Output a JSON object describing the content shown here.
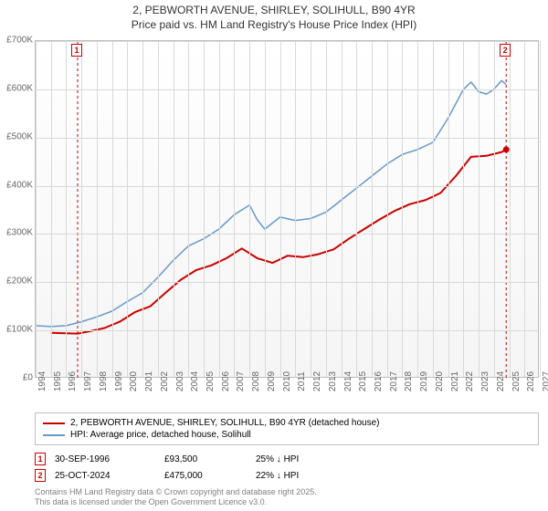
{
  "title": {
    "line1": "2, PEBWORTH AVENUE, SHIRLEY, SOLIHULL, B90 4YR",
    "line2": "Price paid vs. HM Land Registry's House Price Index (HPI)"
  },
  "chart": {
    "type": "line",
    "background_top": "#ffffff",
    "background_bottom": "#f5f5f5",
    "grid_color": "#d9d9d9",
    "border_color": "#bfbfbf",
    "ylim": [
      0,
      700000
    ],
    "ytick_step": 100000,
    "yticks": [
      "£0",
      "£100K",
      "£200K",
      "£300K",
      "£400K",
      "£500K",
      "£600K",
      "£700K"
    ],
    "xlim": [
      1994,
      2027
    ],
    "xticks": [
      "1994",
      "1995",
      "1996",
      "1997",
      "1998",
      "1999",
      "2000",
      "2001",
      "2002",
      "2003",
      "2004",
      "2005",
      "2006",
      "2007",
      "2008",
      "2009",
      "2010",
      "2011",
      "2012",
      "2013",
      "2014",
      "2015",
      "2016",
      "2017",
      "2018",
      "2019",
      "2020",
      "2021",
      "2022",
      "2023",
      "2024",
      "2025",
      "2026",
      "2027"
    ],
    "series": [
      {
        "name": "price_paid",
        "color": "#cc0000",
        "width": 2,
        "points": [
          [
            1995.0,
            95000
          ],
          [
            1996.75,
            93500
          ],
          [
            1997.5,
            98000
          ],
          [
            1998.5,
            105000
          ],
          [
            1999.5,
            118000
          ],
          [
            2000.5,
            138000
          ],
          [
            2001.5,
            150000
          ],
          [
            2002.5,
            178000
          ],
          [
            2003.5,
            205000
          ],
          [
            2004.5,
            225000
          ],
          [
            2005.5,
            235000
          ],
          [
            2006.5,
            250000
          ],
          [
            2007.5,
            270000
          ],
          [
            2008.5,
            250000
          ],
          [
            2009.5,
            240000
          ],
          [
            2010.5,
            255000
          ],
          [
            2011.5,
            252000
          ],
          [
            2012.5,
            258000
          ],
          [
            2013.5,
            268000
          ],
          [
            2014.5,
            290000
          ],
          [
            2015.5,
            310000
          ],
          [
            2016.5,
            330000
          ],
          [
            2017.5,
            348000
          ],
          [
            2018.5,
            362000
          ],
          [
            2019.5,
            370000
          ],
          [
            2020.5,
            385000
          ],
          [
            2021.5,
            420000
          ],
          [
            2022.5,
            460000
          ],
          [
            2023.5,
            462000
          ],
          [
            2024.5,
            470000
          ],
          [
            2024.8,
            475000
          ]
        ],
        "end_marker": true
      },
      {
        "name": "hpi",
        "color": "#6699cc",
        "width": 1.5,
        "points": [
          [
            1994.0,
            110000
          ],
          [
            1995.0,
            108000
          ],
          [
            1996.0,
            110000
          ],
          [
            1997.0,
            118000
          ],
          [
            1998.0,
            128000
          ],
          [
            1999.0,
            140000
          ],
          [
            2000.0,
            160000
          ],
          [
            2001.0,
            178000
          ],
          [
            2002.0,
            210000
          ],
          [
            2003.0,
            245000
          ],
          [
            2004.0,
            275000
          ],
          [
            2005.0,
            290000
          ],
          [
            2006.0,
            310000
          ],
          [
            2007.0,
            340000
          ],
          [
            2008.0,
            360000
          ],
          [
            2008.5,
            330000
          ],
          [
            2009.0,
            310000
          ],
          [
            2010.0,
            335000
          ],
          [
            2011.0,
            328000
          ],
          [
            2012.0,
            332000
          ],
          [
            2013.0,
            345000
          ],
          [
            2014.0,
            370000
          ],
          [
            2015.0,
            395000
          ],
          [
            2016.0,
            420000
          ],
          [
            2017.0,
            445000
          ],
          [
            2018.0,
            465000
          ],
          [
            2019.0,
            475000
          ],
          [
            2020.0,
            490000
          ],
          [
            2021.0,
            540000
          ],
          [
            2022.0,
            600000
          ],
          [
            2022.5,
            615000
          ],
          [
            2023.0,
            595000
          ],
          [
            2023.5,
            590000
          ],
          [
            2024.0,
            600000
          ],
          [
            2024.5,
            618000
          ],
          [
            2024.8,
            610000
          ]
        ]
      }
    ],
    "markers": [
      {
        "id": "1",
        "x": 1996.75,
        "color": "#cc0000",
        "dashed": true
      },
      {
        "id": "2",
        "x": 2024.8,
        "color": "#cc0000",
        "dashed": true
      }
    ]
  },
  "legend": {
    "items": [
      {
        "color": "#cc0000",
        "label": "2, PEBWORTH AVENUE, SHIRLEY, SOLIHULL, B90 4YR (detached house)"
      },
      {
        "color": "#6699cc",
        "label": "HPI: Average price, detached house, Solihull"
      }
    ]
  },
  "data_points": [
    {
      "id": "1",
      "color": "#cc0000",
      "date": "30-SEP-1996",
      "price": "£93,500",
      "pct": "25% ↓ HPI"
    },
    {
      "id": "2",
      "color": "#cc0000",
      "date": "25-OCT-2024",
      "price": "£475,000",
      "pct": "22% ↓ HPI"
    }
  ],
  "footer": {
    "line1": "Contains HM Land Registry data © Crown copyright and database right 2025.",
    "line2": "This data is licensed under the Open Government Licence v3.0."
  }
}
